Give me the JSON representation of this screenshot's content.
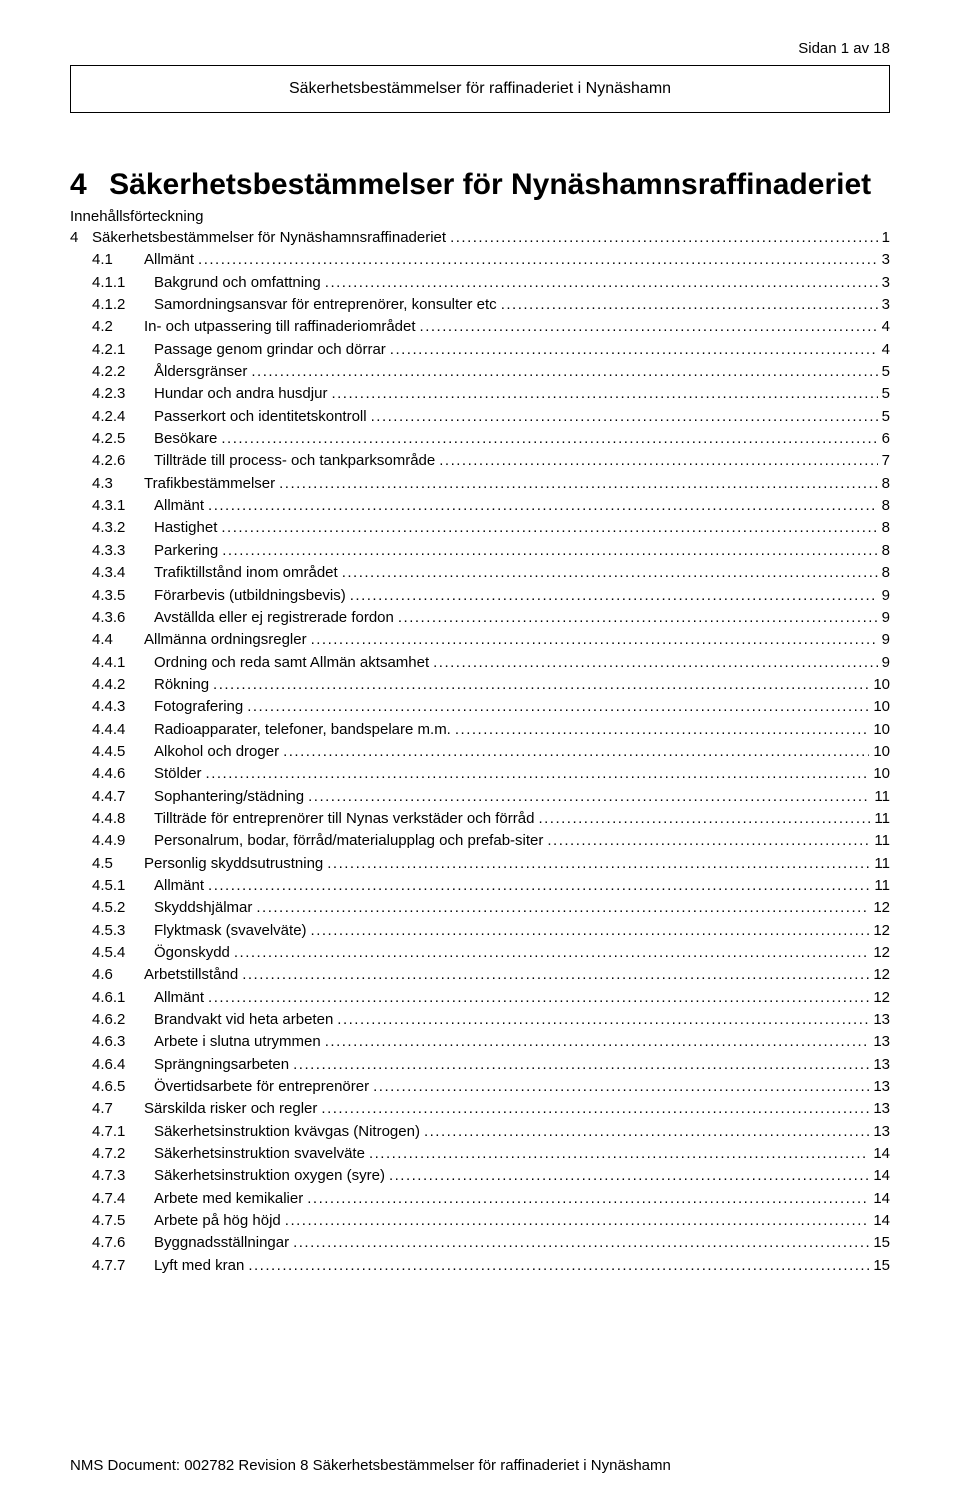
{
  "header": {
    "page_indicator": "Sidan 1 av 18",
    "title_box": "Säkerhetsbestämmelser för raffinaderiet i Nynäshamn"
  },
  "main_section": {
    "number": "4",
    "title": "Säkerhetsbestämmelser för Nynäshamnsraffinaderiet",
    "subheading": "Innehållsförteckning"
  },
  "toc": [
    {
      "num": "4",
      "title": "Säkerhetsbestämmelser för Nynäshamnsraffinaderiet",
      "page": "1",
      "level": 0
    },
    {
      "num": "4.1",
      "title": "Allmänt",
      "page": "3",
      "level": 1
    },
    {
      "num": "4.1.1",
      "title": "Bakgrund och omfattning",
      "page": "3",
      "level": 2
    },
    {
      "num": "4.1.2",
      "title": "Samordningsansvar för entreprenörer, konsulter etc",
      "page": "3",
      "level": 2
    },
    {
      "num": "4.2",
      "title": "In- och utpassering till raffinaderiområdet",
      "page": "4",
      "level": 1
    },
    {
      "num": "4.2.1",
      "title": "Passage genom grindar och dörrar",
      "page": "4",
      "level": 2
    },
    {
      "num": "4.2.2",
      "title": "Åldersgränser",
      "page": "5",
      "level": 2
    },
    {
      "num": "4.2.3",
      "title": "Hundar och andra husdjur",
      "page": "5",
      "level": 2
    },
    {
      "num": "4.2.4",
      "title": "Passerkort och identitetskontroll",
      "page": "5",
      "level": 2
    },
    {
      "num": "4.2.5",
      "title": "Besökare",
      "page": "6",
      "level": 2
    },
    {
      "num": "4.2.6",
      "title": "Tillträde till process- och tankparksområde",
      "page": "7",
      "level": 2
    },
    {
      "num": "4.3",
      "title": "Trafikbestämmelser",
      "page": "8",
      "level": 1
    },
    {
      "num": "4.3.1",
      "title": "Allmänt",
      "page": "8",
      "level": 2
    },
    {
      "num": "4.3.2",
      "title": "Hastighet",
      "page": "8",
      "level": 2
    },
    {
      "num": "4.3.3",
      "title": "Parkering",
      "page": "8",
      "level": 2
    },
    {
      "num": "4.3.4",
      "title": "Trafiktillstånd inom området",
      "page": "8",
      "level": 2
    },
    {
      "num": "4.3.5",
      "title": "Förarbevis (utbildningsbevis)",
      "page": "9",
      "level": 2
    },
    {
      "num": "4.3.6",
      "title": "Avställda eller ej registrerade fordon",
      "page": "9",
      "level": 2
    },
    {
      "num": "4.4",
      "title": "Allmänna ordningsregler",
      "page": "9",
      "level": 1
    },
    {
      "num": "4.4.1",
      "title": "Ordning och reda samt Allmän aktsamhet",
      "page": "9",
      "level": 2
    },
    {
      "num": "4.4.2",
      "title": "Rökning",
      "page": "10",
      "level": 2
    },
    {
      "num": "4.4.3",
      "title": "Fotografering",
      "page": "10",
      "level": 2
    },
    {
      "num": "4.4.4",
      "title": "Radioapparater, telefoner, bandspelare m.m.",
      "page": "10",
      "level": 2
    },
    {
      "num": "4.4.5",
      "title": "Alkohol och droger",
      "page": "10",
      "level": 2
    },
    {
      "num": "4.4.6",
      "title": "Stölder",
      "page": "10",
      "level": 2
    },
    {
      "num": "4.4.7",
      "title": "Sophantering/städning",
      "page": "11",
      "level": 2
    },
    {
      "num": "4.4.8",
      "title": "Tillträde för entreprenörer till Nynas verkstäder och förråd",
      "page": "11",
      "level": 2
    },
    {
      "num": "4.4.9",
      "title": "Personalrum, bodar, förråd/materialupplag och prefab-siter",
      "page": "11",
      "level": 2
    },
    {
      "num": "4.5",
      "title": "Personlig skyddsutrustning",
      "page": "11",
      "level": 1
    },
    {
      "num": "4.5.1",
      "title": "Allmänt",
      "page": "11",
      "level": 2
    },
    {
      "num": "4.5.2",
      "title": "Skyddshjälmar",
      "page": "12",
      "level": 2
    },
    {
      "num": "4.5.3",
      "title": "Flyktmask (svavelväte)",
      "page": "12",
      "level": 2
    },
    {
      "num": "4.5.4",
      "title": "Ögonskydd",
      "page": "12",
      "level": 2
    },
    {
      "num": "4.6",
      "title": "Arbetstillstånd",
      "page": "12",
      "level": 1
    },
    {
      "num": "4.6.1",
      "title": "Allmänt",
      "page": "12",
      "level": 2
    },
    {
      "num": "4.6.2",
      "title": "Brandvakt vid heta arbeten",
      "page": "13",
      "level": 2
    },
    {
      "num": "4.6.3",
      "title": "Arbete i slutna utrymmen",
      "page": "13",
      "level": 2
    },
    {
      "num": "4.6.4",
      "title": "Sprängningsarbeten",
      "page": "13",
      "level": 2
    },
    {
      "num": "4.6.5",
      "title": "Övertidsarbete för entreprenörer",
      "page": "13",
      "level": 2
    },
    {
      "num": "4.7",
      "title": "Särskilda risker och regler",
      "page": "13",
      "level": 1
    },
    {
      "num": "4.7.1",
      "title": "Säkerhetsinstruktion kvävgas (Nitrogen)",
      "page": "13",
      "level": 2
    },
    {
      "num": "4.7.2",
      "title": "Säkerhetsinstruktion svavelväte",
      "page": "14",
      "level": 2
    },
    {
      "num": "4.7.3",
      "title": "Säkerhetsinstruktion oxygen (syre)",
      "page": "14",
      "level": 2
    },
    {
      "num": "4.7.4",
      "title": "Arbete med kemikalier",
      "page": "14",
      "level": 2
    },
    {
      "num": "4.7.5",
      "title": "Arbete på hög höjd",
      "page": "14",
      "level": 2
    },
    {
      "num": "4.7.6",
      "title": "Byggnadsställningar",
      "page": "15",
      "level": 2
    },
    {
      "num": "4.7.7",
      "title": "Lyft med kran",
      "page": "15",
      "level": 2
    }
  ],
  "footer": {
    "text": "NMS Document: 002782 Revision 8 Säkerhetsbestämmelser för raffinaderiet i Nynäshamn"
  }
}
